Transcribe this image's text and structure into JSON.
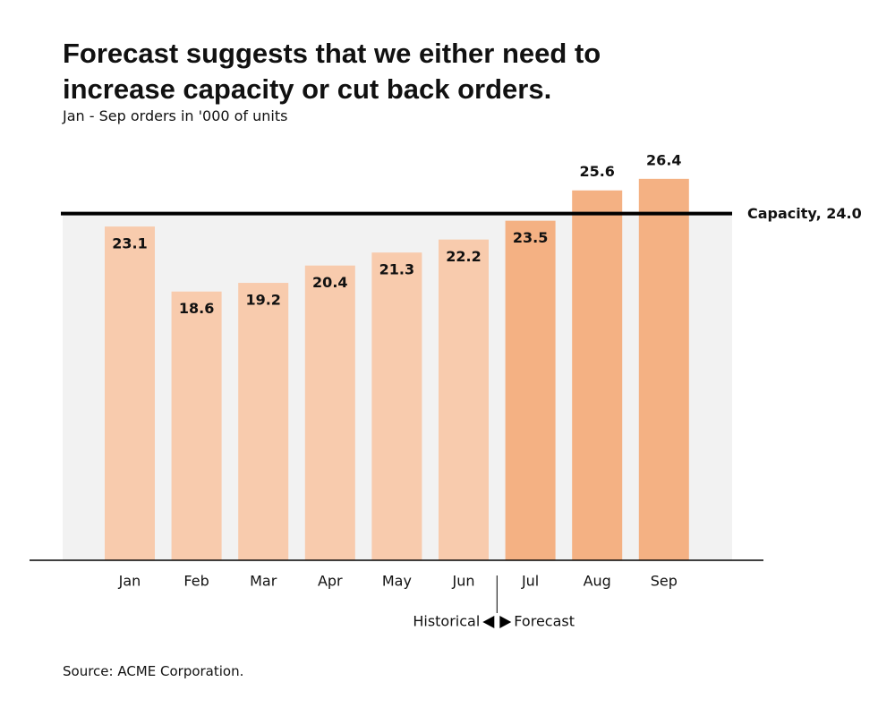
{
  "chart_data": {
    "type": "bar",
    "title": "Forecast suggests that we either need to increase capacity or cut back orders.",
    "subtitle": "Jan - Sep orders in '000 of units",
    "categories": [
      "Jan",
      "Feb",
      "Mar",
      "Apr",
      "May",
      "Jun",
      "Jul",
      "Aug",
      "Sep"
    ],
    "series": [
      {
        "name": "Historical",
        "color": "#f8cbad",
        "values": [
          23.1,
          18.6,
          19.2,
          20.4,
          21.3,
          22.2,
          null,
          null,
          null
        ]
      },
      {
        "name": "Forecast",
        "color": "#f4b183",
        "values": [
          null,
          null,
          null,
          null,
          null,
          null,
          23.5,
          25.6,
          26.4
        ]
      }
    ],
    "ylim": [
      0,
      28
    ],
    "reference_line": {
      "label": "Capacity, 24.0",
      "value": 24,
      "color": "#000000",
      "band_color": "#f2f2f2"
    },
    "source": "Source: ACME Corporation."
  }
}
